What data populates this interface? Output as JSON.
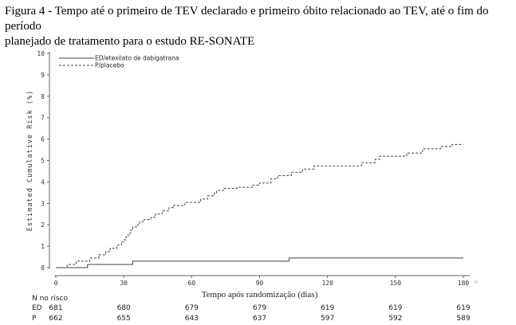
{
  "caption": {
    "line1": "Figura 4 - Tempo até o primeiro de TEV declarado e primeiro óbito relacionado ao TEV, até o fim do período",
    "line2": "planejado de tratamento para o estudo RE-SONATE"
  },
  "chart_data": {
    "type": "line",
    "title": "",
    "xlabel": "Tempo após randomização  (dias)",
    "ylabel": "Estimated Cumulative Risk (%)",
    "xlim": [
      0,
      180
    ],
    "ylim": [
      0,
      10
    ],
    "xticks": [
      0,
      30,
      60,
      90,
      120,
      150,
      180
    ],
    "yticks": [
      0,
      1,
      2,
      3,
      4,
      5,
      6,
      7,
      8,
      9,
      10
    ],
    "grid": false,
    "legend_position": "top-left",
    "series": [
      {
        "name": "ED/etexilato de dabigatrana",
        "style": "solid",
        "color": "#444444",
        "step": true,
        "x": [
          0,
          14,
          34,
          103,
          180
        ],
        "y": [
          0,
          0.15,
          0.3,
          0.45,
          0.45
        ]
      },
      {
        "name": "P/placebo",
        "style": "dashed",
        "color": "#444444",
        "step": true,
        "x": [
          0,
          5,
          9,
          15,
          19,
          22,
          24,
          27,
          29,
          30,
          31,
          32,
          33,
          34,
          36,
          37,
          39,
          42,
          44,
          47,
          50,
          52,
          55,
          57,
          61,
          64,
          67,
          70,
          71,
          73,
          74,
          76,
          80,
          84,
          87,
          90,
          95,
          98,
          104,
          109,
          114,
          118,
          121,
          128,
          133,
          135,
          141,
          143,
          151,
          155,
          162,
          170,
          175,
          180
        ],
        "y": [
          0,
          0.15,
          0.3,
          0.45,
          0.6,
          0.75,
          0.9,
          1.05,
          1.2,
          1.3,
          1.45,
          1.6,
          1.75,
          1.9,
          2.0,
          2.15,
          2.25,
          2.35,
          2.5,
          2.65,
          2.8,
          2.9,
          2.9,
          3.05,
          3.05,
          3.2,
          3.35,
          3.5,
          3.6,
          3.6,
          3.7,
          3.7,
          3.75,
          3.75,
          3.85,
          3.95,
          4.15,
          4.3,
          4.45,
          4.6,
          4.75,
          4.75,
          4.75,
          4.75,
          4.75,
          4.9,
          5.05,
          5.2,
          5.2,
          5.35,
          5.55,
          5.65,
          5.75,
          5.75
        ]
      }
    ]
  },
  "risk_table": {
    "title": "N no risco",
    "x": [
      0,
      30,
      60,
      90,
      120,
      150,
      180
    ],
    "rows": [
      {
        "label": "ED",
        "values": [
          "681",
          "680",
          "679",
          "679",
          "619",
          "619",
          "619"
        ]
      },
      {
        "label": "P",
        "values": [
          "662",
          "655",
          "643",
          "637",
          "597",
          "592",
          "589"
        ]
      }
    ]
  }
}
